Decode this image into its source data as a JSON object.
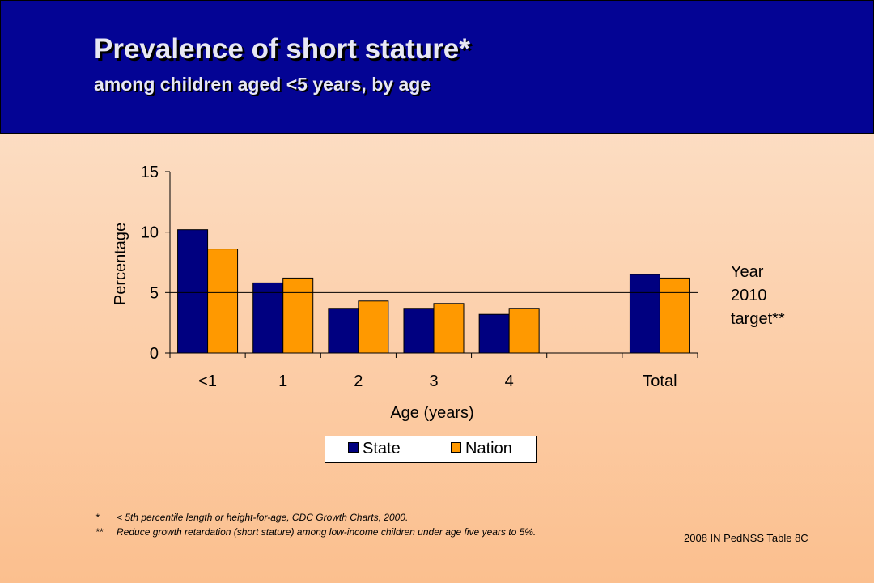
{
  "header": {
    "title": "Prevalence of short stature*",
    "subtitle": "among children aged <5 years, by age"
  },
  "chart_data": {
    "type": "bar",
    "categories": [
      "<1",
      "1",
      "2",
      "3",
      "4",
      "",
      "Total"
    ],
    "series": [
      {
        "name": "State",
        "color": "#000080",
        "values": [
          10.2,
          5.8,
          3.7,
          3.7,
          3.2,
          null,
          6.5
        ]
      },
      {
        "name": "Nation",
        "color": "#ff9900",
        "values": [
          8.6,
          6.2,
          4.3,
          4.1,
          3.7,
          null,
          6.2
        ]
      }
    ],
    "xlabel": "Age (years)",
    "ylabel": "Percentage",
    "ylim": [
      0,
      15
    ],
    "yticks": [
      0,
      5,
      10,
      15
    ],
    "reference_line": {
      "value": 5,
      "label": "Year 2010 target**"
    },
    "grid": false,
    "legend_position": "bottom"
  },
  "target_label_lines": [
    "Year",
    "2010",
    "target**"
  ],
  "footnotes": [
    {
      "mark": "*",
      "text": "< 5th percentile length or height-for-age, CDC Growth Charts, 2000."
    },
    {
      "mark": "**",
      "text": "Reduce growth retardation (short stature) among low-income children under age five years to 5%."
    }
  ],
  "source": "2008 IN PedNSS Table 8C"
}
